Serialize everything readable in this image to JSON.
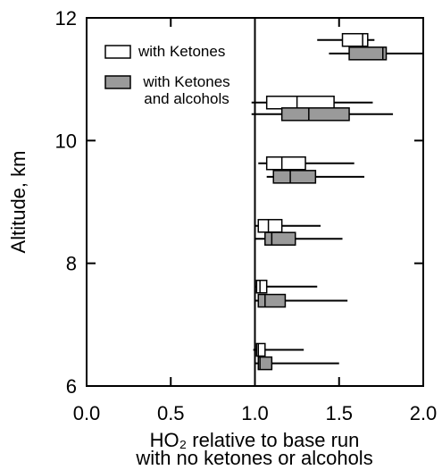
{
  "chart_data": {
    "type": "boxplot",
    "orientation": "horizontal",
    "xlabel": [
      "HO₂ relative to base run",
      "with no ketones or alcohols"
    ],
    "ylabel": "Altitude, km",
    "xlim": [
      0.0,
      2.0
    ],
    "xticks": [
      {
        "value": 0,
        "label": "0.0"
      },
      {
        "value": 0.5,
        "label": "0.5"
      },
      {
        "value": 1,
        "label": "1.0"
      },
      {
        "value": 1.5,
        "label": "1.5"
      },
      {
        "value": 2,
        "label": "2.0"
      }
    ],
    "ylim": [
      6,
      12
    ],
    "yticks": [
      6,
      8,
      10,
      12
    ],
    "vline": 1.0,
    "legend": "upper left",
    "series": [
      {
        "name": "with Ketones",
        "color": "#ffffff",
        "y": [
          11.64,
          10.62,
          9.63,
          8.61,
          7.62,
          6.59
        ],
        "whisker_low": [
          1.37,
          0.98,
          1.02,
          1.0,
          1.0,
          0.99
        ],
        "q1": [
          1.52,
          1.07,
          1.07,
          1.02,
          1.01,
          1.01
        ],
        "median": [
          1.64,
          1.25,
          1.16,
          1.08,
          1.03,
          1.02
        ],
        "q3": [
          1.67,
          1.47,
          1.3,
          1.16,
          1.07,
          1.06
        ],
        "whisker_high": [
          1.71,
          1.7,
          1.59,
          1.39,
          1.37,
          1.29
        ]
      },
      {
        "name": "with Ketones and alcohols",
        "color": "#9a9a9a",
        "y": [
          11.42,
          10.43,
          9.41,
          8.4,
          7.39,
          6.37
        ],
        "whisker_low": [
          1.44,
          0.98,
          1.07,
          1.0,
          1.0,
          1.0
        ],
        "q1": [
          1.56,
          1.16,
          1.11,
          1.06,
          1.02,
          1.02
        ],
        "median": [
          1.76,
          1.32,
          1.21,
          1.1,
          1.06,
          1.03
        ],
        "q3": [
          1.78,
          1.56,
          1.36,
          1.24,
          1.18,
          1.1
        ],
        "whisker_high": [
          2.0,
          1.82,
          1.65,
          1.52,
          1.55,
          1.5
        ]
      }
    ]
  }
}
